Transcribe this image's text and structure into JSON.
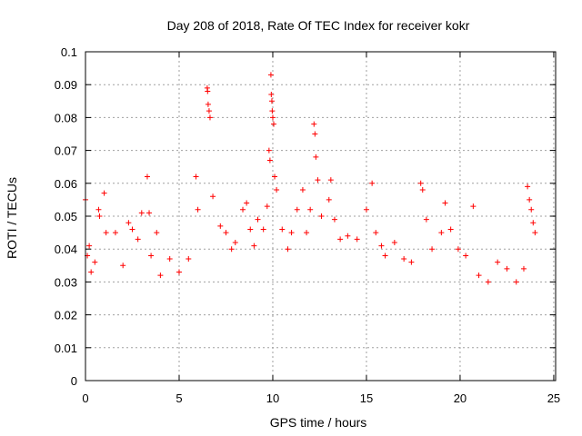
{
  "chart_data": {
    "type": "scatter",
    "title": "Day 208 of 2018, Rate Of TEC Index for receiver kokr",
    "xlabel": "GPS time / hours",
    "ylabel": "ROTI / TECUs",
    "xlim": [
      0,
      24
    ],
    "ylim": [
      0,
      0.1
    ],
    "x_ticks": [
      "0",
      "5",
      "10",
      "15",
      "20",
      "25"
    ],
    "y_ticks": [
      "0",
      "0.01",
      "0.02",
      "0.03",
      "0.04",
      "0.05",
      "0.06",
      "0.07",
      "0.08",
      "0.09",
      "0.1"
    ],
    "grid": true,
    "marker": "+",
    "color": "#ff0000",
    "series": [
      {
        "points": [
          [
            0.0,
            0.055
          ],
          [
            0.1,
            0.038
          ],
          [
            0.2,
            0.041
          ],
          [
            0.3,
            0.033
          ],
          [
            0.5,
            0.036
          ],
          [
            0.7,
            0.052
          ],
          [
            0.75,
            0.05
          ],
          [
            1.0,
            0.057
          ],
          [
            1.1,
            0.045
          ],
          [
            1.6,
            0.045
          ],
          [
            2.0,
            0.035
          ],
          [
            2.3,
            0.048
          ],
          [
            2.5,
            0.046
          ],
          [
            2.8,
            0.043
          ],
          [
            3.0,
            0.051
          ],
          [
            3.3,
            0.062
          ],
          [
            3.4,
            0.051
          ],
          [
            3.5,
            0.038
          ],
          [
            3.8,
            0.045
          ],
          [
            4.0,
            0.032
          ],
          [
            4.5,
            0.037
          ],
          [
            5.0,
            0.033
          ],
          [
            5.5,
            0.037
          ],
          [
            5.9,
            0.062
          ],
          [
            6.0,
            0.052
          ],
          [
            6.5,
            0.089
          ],
          [
            6.52,
            0.088
          ],
          [
            6.55,
            0.084
          ],
          [
            6.6,
            0.082
          ],
          [
            6.65,
            0.08
          ],
          [
            6.8,
            0.056
          ],
          [
            7.2,
            0.047
          ],
          [
            7.5,
            0.045
          ],
          [
            7.8,
            0.04
          ],
          [
            8.0,
            0.042
          ],
          [
            8.4,
            0.052
          ],
          [
            8.6,
            0.054
          ],
          [
            8.8,
            0.046
          ],
          [
            9.0,
            0.041
          ],
          [
            9.2,
            0.049
          ],
          [
            9.5,
            0.046
          ],
          [
            9.7,
            0.053
          ],
          [
            9.8,
            0.07
          ],
          [
            9.85,
            0.067
          ],
          [
            9.9,
            0.093
          ],
          [
            9.92,
            0.087
          ],
          [
            9.95,
            0.085
          ],
          [
            9.97,
            0.082
          ],
          [
            10.0,
            0.08
          ],
          [
            10.05,
            0.078
          ],
          [
            10.1,
            0.062
          ],
          [
            10.2,
            0.058
          ],
          [
            10.5,
            0.046
          ],
          [
            10.8,
            0.04
          ],
          [
            11.0,
            0.045
          ],
          [
            11.3,
            0.052
          ],
          [
            11.6,
            0.058
          ],
          [
            11.8,
            0.045
          ],
          [
            12.0,
            0.052
          ],
          [
            12.2,
            0.078
          ],
          [
            12.25,
            0.075
          ],
          [
            12.3,
            0.068
          ],
          [
            12.4,
            0.061
          ],
          [
            12.6,
            0.05
          ],
          [
            13.0,
            0.055
          ],
          [
            13.1,
            0.061
          ],
          [
            13.3,
            0.049
          ],
          [
            13.6,
            0.043
          ],
          [
            14.0,
            0.044
          ],
          [
            14.5,
            0.043
          ],
          [
            15.0,
            0.052
          ],
          [
            15.3,
            0.06
          ],
          [
            15.5,
            0.045
          ],
          [
            15.8,
            0.041
          ],
          [
            16.0,
            0.038
          ],
          [
            16.5,
            0.042
          ],
          [
            17.0,
            0.037
          ],
          [
            17.4,
            0.036
          ],
          [
            17.9,
            0.06
          ],
          [
            18.0,
            0.058
          ],
          [
            18.2,
            0.049
          ],
          [
            18.5,
            0.04
          ],
          [
            19.0,
            0.045
          ],
          [
            19.2,
            0.054
          ],
          [
            19.5,
            0.046
          ],
          [
            19.9,
            0.04
          ],
          [
            20.3,
            0.038
          ],
          [
            20.7,
            0.053
          ],
          [
            21.0,
            0.032
          ],
          [
            21.5,
            0.03
          ],
          [
            22.0,
            0.036
          ],
          [
            22.5,
            0.034
          ],
          [
            23.0,
            0.03
          ],
          [
            23.4,
            0.034
          ],
          [
            23.6,
            0.059
          ],
          [
            23.7,
            0.055
          ],
          [
            23.8,
            0.052
          ],
          [
            23.9,
            0.048
          ],
          [
            24.0,
            0.045
          ]
        ]
      }
    ]
  }
}
